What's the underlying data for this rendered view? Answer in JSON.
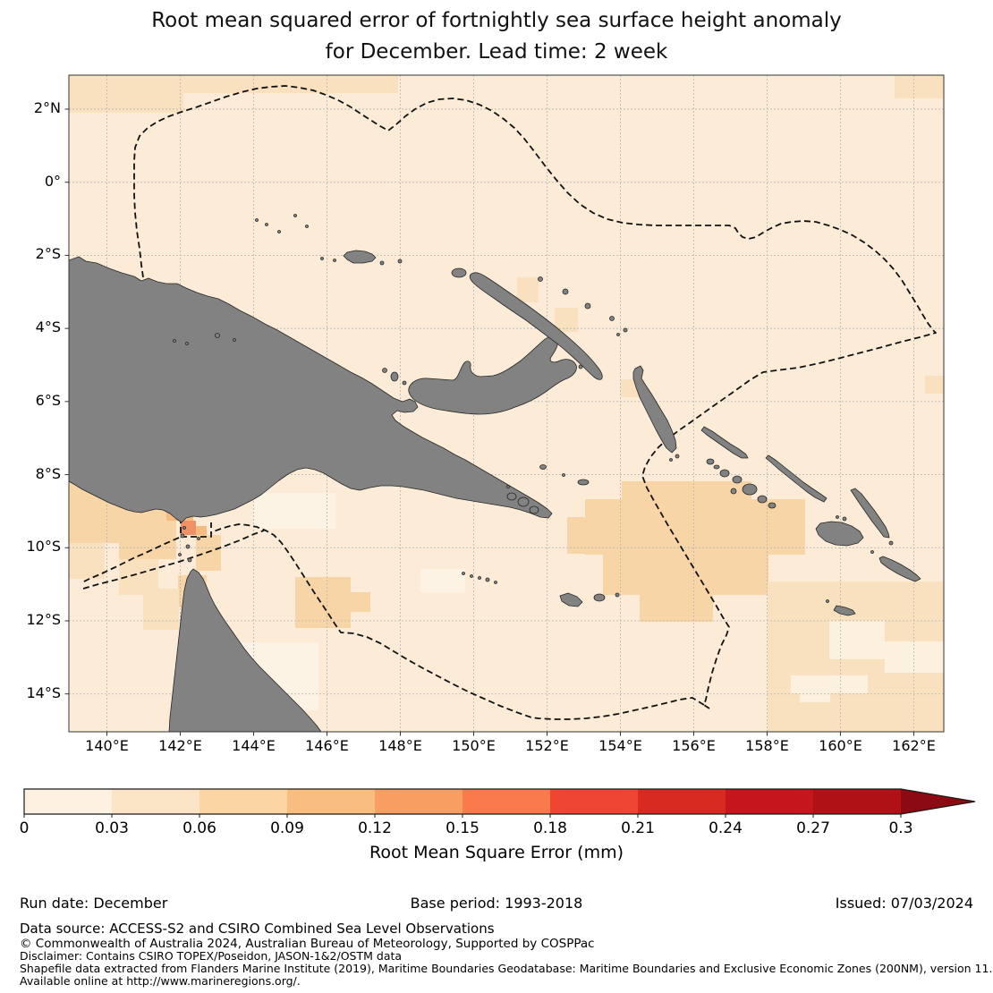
{
  "title": {
    "line1": "Root mean squared error of fortnightly sea surface height anomaly",
    "line2": "for December. Lead time: 2 week"
  },
  "map": {
    "x_ticks": [
      "140°E",
      "142°E",
      "144°E",
      "146°E",
      "148°E",
      "150°E",
      "152°E",
      "154°E",
      "156°E",
      "158°E",
      "160°E",
      "162°E"
    ],
    "y_ticks": [
      "2°N",
      "0°",
      "2°S",
      "4°S",
      "6°S",
      "8°S",
      "10°S",
      "12°S",
      "14°S"
    ],
    "land_color": "#828282",
    "coast_color": "#222222",
    "sea_base_color": "#fcecd7",
    "boundary_style": "black-dashed-eez"
  },
  "colorbar": {
    "label": "Root Mean Square Error (mm)",
    "ticks": [
      "0",
      "0.03",
      "0.06",
      "0.09",
      "0.12",
      "0.15",
      "0.18",
      "0.21",
      "0.24",
      "0.27",
      "0.3"
    ],
    "colors": [
      "#fdf2e1",
      "#fce5c6",
      "#fbd6a2",
      "#fabd80",
      "#f99e62",
      "#f97a4d",
      "#ef4533",
      "#d92a22",
      "#c5161d",
      "#b01116"
    ],
    "arrow_color": "#8c0a11"
  },
  "footer": {
    "run_date": "Run date: December",
    "base_period": "Base period: 1993-2018",
    "issued": "Issued: 07/03/2024",
    "data_source": "Data source: ACCESS-S2 and CSIRO Combined Sea Level Observations",
    "copyright": "© Commonwealth of Australia 2024, Australian Bureau of Meteorology, Supported by COSPPac",
    "disclaimer": "Disclaimer: Contains CSIRO TOPEX/Poseidon, JASON-1&2/OSTM data",
    "shapefile": "Shapefile data extracted from Flanders Marine Institute (2019), Maritime Boundaries Geodatabase: Maritime Boundaries and Exclusive Economic Zones (200NM), version 11.",
    "available": "Available online at http://www.marineregions.org/."
  }
}
